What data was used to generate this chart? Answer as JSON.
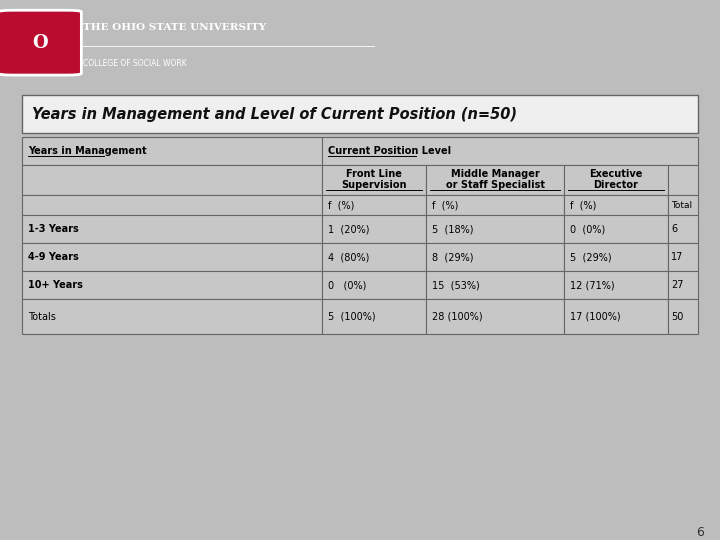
{
  "title": "Years in Management and Level of Current Position (n=50)",
  "header_col": "Years in Management",
  "header_group": "Current Position Level",
  "sub_headers": [
    "Front Line\nSupervision",
    "Middle Manager\nor Staff Specialist",
    "Executive\nDirector"
  ],
  "freq_label": "f  (%)",
  "row_labels": [
    "1-3 Years",
    "4-9 Years",
    "10+ Years",
    "Totals"
  ],
  "data": [
    [
      "1  (20%)",
      "5  (18%)",
      "0  (0%)",
      "6"
    ],
    [
      "4  (80%)",
      "8  (29%)",
      "5  (29%)",
      "17"
    ],
    [
      "0   (0%)",
      "15  (53%)",
      "12 (71%)",
      "27"
    ],
    [
      "5  (100%)",
      "28 (100%)",
      "17 (100%)",
      "50"
    ]
  ],
  "bg_color": "#bebdbd",
  "header_bar_color": "#ba0c2f",
  "university_name": "THE OHIO STATE UNIVERSITY",
  "college_name": "COLLEGE OF SOCIAL WORK",
  "page_number": "6",
  "cell_bg": "#c8c7c7",
  "title_bg": "#f0efef",
  "border_color": "#666666"
}
